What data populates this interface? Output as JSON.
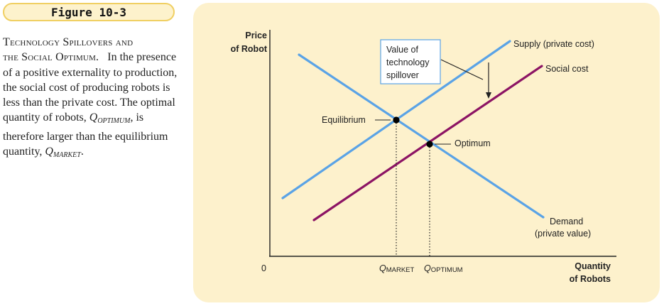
{
  "figure_label": "Figure 10-3",
  "caption": {
    "title_line1": "Technology Spillovers and",
    "title_line2": "the Social Optimum.",
    "text": "In the presence of a positive externality to production, the social cost of producing robots is less than the private cost. The optimal quantity of robots,",
    "q_optimum_main": "Q",
    "q_optimum_sub": "OPTIMUM",
    "text2": ", is therefore larger than the equilibrium quantity,",
    "q_market_main": "Q",
    "q_market_sub": "MARKET",
    "text_end": "."
  },
  "diagram": {
    "y_axis_label_line1": "Price",
    "y_axis_label_line2": "of Robot",
    "x_axis_label_line1": "Quantity",
    "x_axis_label_line2": "of Robots",
    "origin_label": "0",
    "supply_label": "Supply (private cost)",
    "social_cost_label": "Social cost",
    "demand_label_line1": "Demand",
    "demand_label_line2": "(private value)",
    "equilibrium_label": "Equilibrium",
    "optimum_label": "Optimum",
    "spillover_label_line1": "Value of",
    "spillover_label_line2": "technology",
    "spillover_label_line3": "spillover",
    "q_market_main": "Q",
    "q_market_sub": "MARKET",
    "q_optimum_main": "Q",
    "q_optimum_sub": "OPTIMUM",
    "colors": {
      "panel_bg": "#fdf1cc",
      "supply_demand": "#5aa3e6",
      "social_cost": "#8c1464",
      "axis": "#222222",
      "badge_border": "#f0cf62"
    }
  }
}
